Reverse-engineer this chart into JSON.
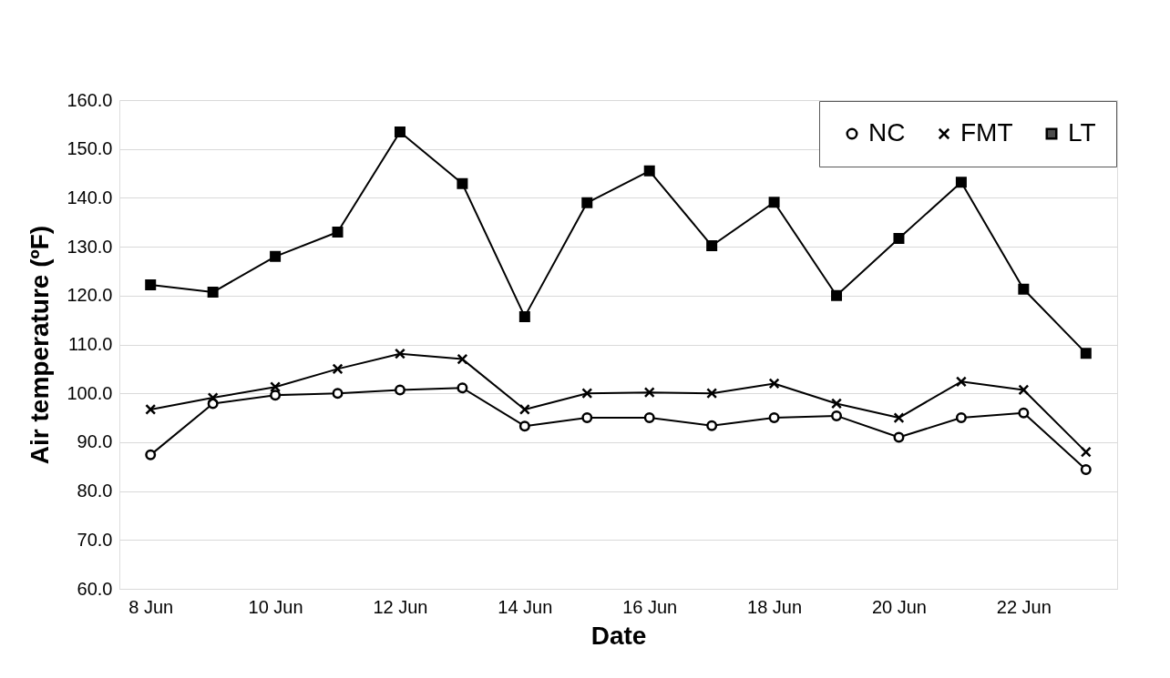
{
  "chart_data": {
    "type": "line",
    "xlabel": "Date",
    "ylabel": "Air temperature (ºF)",
    "categories": [
      "8 Jun",
      null,
      "10 Jun",
      null,
      "12 Jun",
      null,
      "14 Jun",
      null,
      "16 Jun",
      null,
      "18 Jun",
      null,
      "20 Jun",
      null,
      "22 Jun",
      null
    ],
    "series": [
      {
        "name": "NC",
        "color": "#000000",
        "marker": "circle",
        "values": [
          87.4,
          97.9,
          99.6,
          100.0,
          100.7,
          101.1,
          93.3,
          95.0,
          95.0,
          93.4,
          95.0,
          95.4,
          91.0,
          95.0,
          96.0,
          84.4
        ]
      },
      {
        "name": "FMT",
        "color": "#000000",
        "marker": "cross",
        "values": [
          96.7,
          99.1,
          101.3,
          105.0,
          108.1,
          107.0,
          96.7,
          100.0,
          100.2,
          100.0,
          102.0,
          97.9,
          95.0,
          102.4,
          100.7,
          88.0
        ]
      },
      {
        "name": "LT",
        "color": "#000000",
        "marker": "square",
        "values": [
          122.2,
          120.7,
          128.0,
          133.0,
          153.5,
          142.9,
          115.7,
          139.0,
          145.5,
          130.2,
          139.1,
          120.0,
          131.7,
          143.2,
          121.3,
          108.2
        ]
      }
    ],
    "ylim": [
      60,
      160
    ],
    "yticks": [
      {
        "value": 60,
        "label": "60.0"
      },
      {
        "value": 70,
        "label": "70.0"
      },
      {
        "value": 80,
        "label": "80.0"
      },
      {
        "value": 90,
        "label": "90.0"
      },
      {
        "value": 100,
        "label": "100.0"
      },
      {
        "value": 110,
        "label": "110.0"
      },
      {
        "value": 120,
        "label": "120.0"
      },
      {
        "value": 130,
        "label": "130.0"
      },
      {
        "value": 140,
        "label": "140.0"
      },
      {
        "value": 150,
        "label": "150.0"
      },
      {
        "value": 160,
        "label": "160.0"
      }
    ],
    "grid": "y",
    "legend": "top right",
    "line_style": "solid"
  }
}
